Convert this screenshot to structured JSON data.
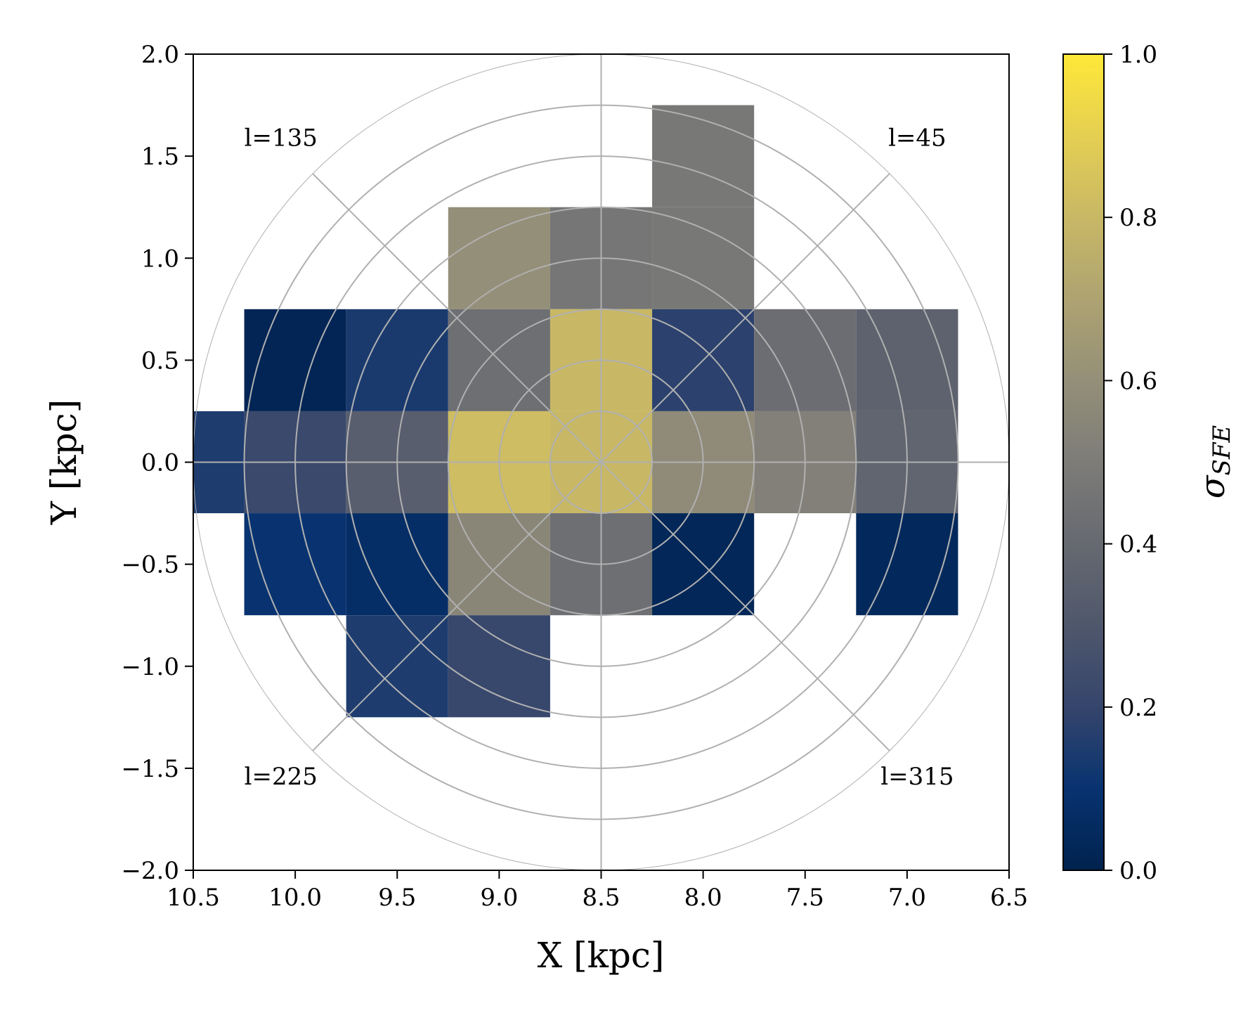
{
  "chart_data": {
    "type": "heatmap",
    "xlabel": "X [kpc]",
    "ylabel": "Y [kpc]",
    "xlim": [
      10.5,
      6.5
    ],
    "ylim": [
      -2.0,
      2.0
    ],
    "x_ticks": [
      "10.5",
      "10.0",
      "9.5",
      "9.0",
      "8.5",
      "8.0",
      "7.5",
      "7.0",
      "6.5"
    ],
    "y_ticks": [
      "−2.0",
      "−1.5",
      "−1.0",
      "−0.5",
      "0.0",
      "0.5",
      "1.0",
      "1.5",
      "2.0"
    ],
    "x_tick_values": [
      10.5,
      10.0,
      9.5,
      9.0,
      8.5,
      8.0,
      7.5,
      7.0,
      6.5
    ],
    "y_tick_values": [
      -2.0,
      -1.5,
      -1.0,
      -0.5,
      0.0,
      0.5,
      1.0,
      1.5,
      2.0
    ],
    "bin_size": 0.5,
    "cells": [
      {
        "x": 8.0,
        "y": 1.5,
        "v": 0.48
      },
      {
        "x": 9.0,
        "y": 1.0,
        "v": 0.6
      },
      {
        "x": 8.5,
        "y": 1.0,
        "v": 0.47
      },
      {
        "x": 8.0,
        "y": 1.0,
        "v": 0.48
      },
      {
        "x": 10.0,
        "y": 0.5,
        "v": 0.02
      },
      {
        "x": 9.5,
        "y": 0.5,
        "v": 0.14
      },
      {
        "x": 9.0,
        "y": 0.5,
        "v": 0.43
      },
      {
        "x": 8.5,
        "y": 0.5,
        "v": 0.8
      },
      {
        "x": 8.0,
        "y": 0.5,
        "v": 0.18
      },
      {
        "x": 7.5,
        "y": 0.5,
        "v": 0.42
      },
      {
        "x": 7.0,
        "y": 0.5,
        "v": 0.36
      },
      {
        "x": 10.5,
        "y": 0.0,
        "v": 0.15
      },
      {
        "x": 10.0,
        "y": 0.0,
        "v": 0.22
      },
      {
        "x": 9.5,
        "y": 0.0,
        "v": 0.34
      },
      {
        "x": 9.0,
        "y": 0.0,
        "v": 0.82
      },
      {
        "x": 8.5,
        "y": 0.0,
        "v": 0.8
      },
      {
        "x": 8.0,
        "y": 0.0,
        "v": 0.58
      },
      {
        "x": 7.5,
        "y": 0.0,
        "v": 0.52
      },
      {
        "x": 7.0,
        "y": 0.0,
        "v": 0.38
      },
      {
        "x": 10.0,
        "y": -0.5,
        "v": 0.1
      },
      {
        "x": 9.5,
        "y": -0.5,
        "v": 0.07
      },
      {
        "x": 9.0,
        "y": -0.5,
        "v": 0.55
      },
      {
        "x": 8.5,
        "y": -0.5,
        "v": 0.43
      },
      {
        "x": 8.0,
        "y": -0.5,
        "v": 0.03
      },
      {
        "x": 7.0,
        "y": -0.5,
        "v": 0.04
      },
      {
        "x": 9.5,
        "y": -1.0,
        "v": 0.15
      },
      {
        "x": 9.0,
        "y": -1.0,
        "v": 0.21
      }
    ],
    "polar_grid": {
      "center": [
        8.5,
        0.0
      ],
      "radii": [
        0.25,
        0.5,
        0.75,
        1.0,
        1.25,
        1.5,
        1.75,
        2.0
      ],
      "angles_deg": [
        0,
        45,
        90,
        135,
        180,
        225,
        270,
        315
      ]
    },
    "annotations": [
      {
        "text": "l=135",
        "x": 10.07,
        "y": 1.55
      },
      {
        "text": "l=45",
        "x": 6.95,
        "y": 1.55
      },
      {
        "text": "l=225",
        "x": 10.07,
        "y": -1.58
      },
      {
        "text": "l=315",
        "x": 6.95,
        "y": -1.58
      }
    ],
    "colorbar": {
      "label": "σSFE",
      "label_main": "σ",
      "label_sub": "SFE",
      "min": 0.0,
      "max": 1.0,
      "ticks": [
        "0.0",
        "0.2",
        "0.4",
        "0.6",
        "0.8",
        "1.0"
      ],
      "tick_values": [
        0.0,
        0.2,
        0.4,
        0.6,
        0.8,
        1.0
      ],
      "colormap": "cividis"
    },
    "colors": {
      "grid": "#b0b0b0",
      "axes": "#000000"
    }
  }
}
